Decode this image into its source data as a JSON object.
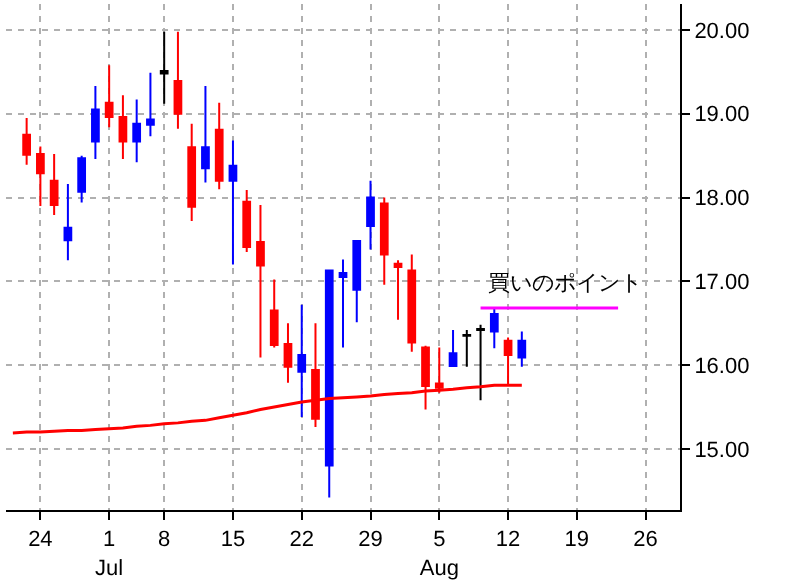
{
  "chart_data": {
    "type": "candlestick",
    "categories": [
      null,
      null,
      "24",
      null,
      null,
      null,
      null,
      "1\nJul",
      null,
      null,
      null,
      "8",
      null,
      null,
      null,
      null,
      "15",
      null,
      null,
      null,
      null,
      "22",
      null,
      null,
      null,
      null,
      "29",
      null,
      null,
      null,
      null,
      "5\nAug",
      null,
      null,
      null,
      null,
      "12",
      null,
      null,
      null,
      null,
      "19",
      null,
      null,
      null,
      null,
      "26",
      null,
      null
    ],
    "ohlc": [
      null,
      [
        18.75,
        18.95,
        18.39,
        18.51
      ],
      [
        18.52,
        18.61,
        17.9,
        18.29
      ],
      [
        18.2,
        18.52,
        17.79,
        17.91
      ],
      [
        17.49,
        18.16,
        17.25,
        17.64
      ],
      [
        18.07,
        18.5,
        17.94,
        18.47
      ],
      [
        18.67,
        19.33,
        18.46,
        19.05
      ],
      [
        19.13,
        19.58,
        18.84,
        18.96
      ],
      [
        18.96,
        19.22,
        18.46,
        18.67
      ],
      [
        18.67,
        19.17,
        18.42,
        18.88
      ],
      [
        18.87,
        19.49,
        18.73,
        18.93
      ],
      [
        19.48,
        19.98,
        19.12,
        19.51
      ],
      [
        19.39,
        19.98,
        18.82,
        19.0
      ],
      [
        18.6,
        18.88,
        17.72,
        17.89
      ],
      [
        18.35,
        19.33,
        18.18,
        18.6
      ],
      [
        18.81,
        19.13,
        18.1,
        18.2
      ],
      [
        18.2,
        18.68,
        17.2,
        18.38
      ],
      [
        17.95,
        18.09,
        17.35,
        17.41
      ],
      [
        17.47,
        17.91,
        16.09,
        17.19
      ],
      [
        16.65,
        17.02,
        16.21,
        16.24
      ],
      [
        16.25,
        16.5,
        15.79,
        15.98
      ],
      [
        15.92,
        16.72,
        15.38,
        16.12
      ],
      [
        15.94,
        16.5,
        15.26,
        15.36
      ],
      [
        14.8,
        17.13,
        14.42,
        17.13
      ],
      [
        17.05,
        17.26,
        16.21,
        17.1
      ],
      [
        16.9,
        17.48,
        16.51,
        17.48
      ],
      [
        17.66,
        18.2,
        17.38,
        18.0
      ],
      [
        17.93,
        18.0,
        16.96,
        17.32
      ],
      [
        17.21,
        17.25,
        16.54,
        17.17
      ],
      [
        17.13,
        17.32,
        16.16,
        16.27
      ],
      [
        16.21,
        16.23,
        15.47,
        15.75
      ],
      [
        15.78,
        16.21,
        15.67,
        15.73
      ],
      [
        15.99,
        16.42,
        15.99,
        16.14
      ],
      [
        16.35,
        16.42,
        15.98,
        16.36
      ],
      [
        16.42,
        16.48,
        15.58,
        16.43
      ],
      [
        16.4,
        16.69,
        16.2,
        16.61
      ],
      [
        16.29,
        16.33,
        15.76,
        16.12
      ],
      [
        16.09,
        16.4,
        15.98,
        16.29
      ],
      null,
      null,
      null,
      null,
      null,
      null,
      null,
      null,
      null,
      null,
      null
    ],
    "colors": [
      null,
      "#ff0000",
      "#ff0000",
      "#ff0000",
      "#0000ff",
      "#0000ff",
      "#0000ff",
      "#ff0000",
      "#ff0000",
      "#0000ff",
      "#0000ff",
      "#000000",
      "#ff0000",
      "#ff0000",
      "#0000ff",
      "#ff0000",
      "#0000ff",
      "#ff0000",
      "#ff0000",
      "#ff0000",
      "#ff0000",
      "#0000ff",
      "#ff0000",
      "#0000ff",
      "#0000ff",
      "#0000ff",
      "#0000ff",
      "#ff0000",
      "#ff0000",
      "#ff0000",
      "#ff0000",
      "#ff0000",
      "#0000ff",
      "#000000",
      "#000000",
      "#0000ff",
      "#ff0000",
      "#0000ff",
      null,
      null,
      null,
      null,
      null,
      null,
      null,
      null,
      null,
      null,
      null
    ],
    "series": [
      {
        "type": "line",
        "color": "#ff0000",
        "values": [
          15.19,
          15.2,
          15.2,
          15.21,
          15.22,
          15.22,
          15.23,
          15.24,
          15.25,
          15.27,
          15.28,
          15.3,
          15.31,
          15.33,
          15.34,
          15.37,
          15.4,
          15.43,
          15.47,
          15.5,
          15.53,
          15.56,
          15.58,
          15.6,
          15.61,
          15.62,
          15.63,
          15.65,
          15.66,
          15.67,
          15.69,
          15.7,
          15.71,
          15.73,
          15.74,
          15.76,
          15.76,
          15.76,
          null,
          null,
          null,
          null,
          null,
          null,
          null,
          null,
          null,
          null,
          null
        ]
      },
      {
        "type": "line",
        "name": "買いのポイント",
        "color": "#ff00ff",
        "values": [
          null,
          null,
          null,
          null,
          null,
          null,
          null,
          null,
          null,
          null,
          null,
          null,
          null,
          null,
          null,
          null,
          null,
          null,
          null,
          null,
          null,
          null,
          null,
          null,
          null,
          null,
          null,
          null,
          null,
          null,
          null,
          null,
          null,
          null,
          16.68,
          16.68,
          16.68,
          16.68,
          16.68,
          16.68,
          16.68,
          16.68,
          16.68,
          16.68,
          16.68,
          null,
          null,
          null,
          null
        ]
      }
    ],
    "ylim": [
      14.27,
      20.31
    ],
    "yticks": [
      {
        "value": 15,
        "label": "15.00"
      },
      {
        "value": 16,
        "label": "16.00"
      },
      {
        "value": 17,
        "label": "17.00"
      },
      {
        "value": 18,
        "label": "18.00"
      },
      {
        "value": 19,
        "label": "19.00"
      },
      {
        "value": 20,
        "label": "20.00"
      }
    ],
    "grid": true
  }
}
